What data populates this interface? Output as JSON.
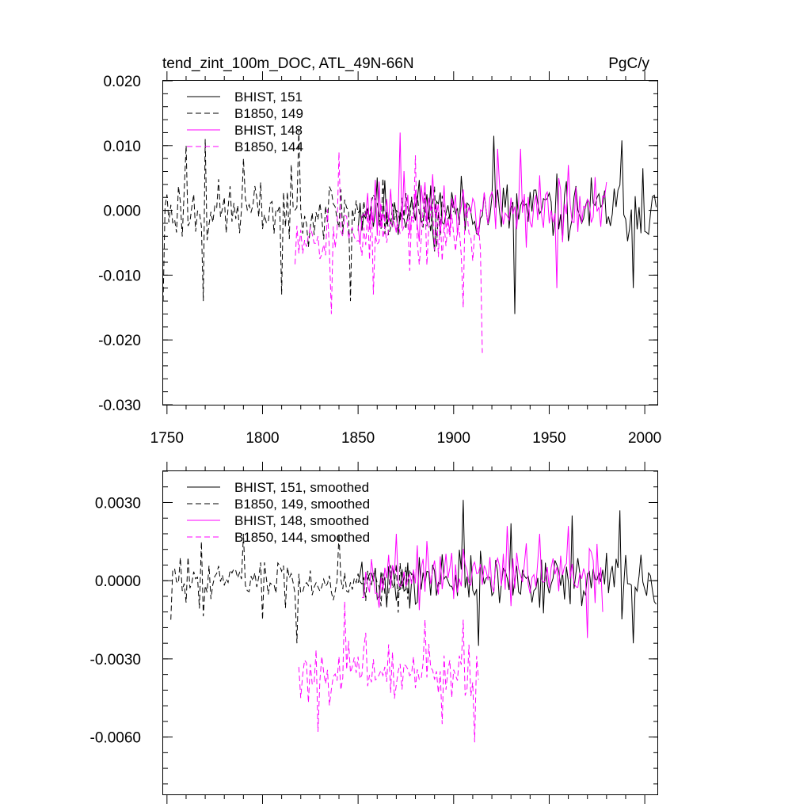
{
  "chart_data": [
    {
      "type": "line",
      "title_left": "tend_zint_100m_DOC, ATL_49N-66N",
      "title_right": "PgC/y",
      "xlim": [
        1748,
        2007
      ],
      "ylim": [
        -0.03,
        0.02
      ],
      "xticks": [
        1750,
        1800,
        1850,
        1900,
        1950,
        2000
      ],
      "xtick_labels": [
        "1750",
        "1800",
        "1850",
        "1900",
        "1950",
        "2000"
      ],
      "yticks": [
        0.02,
        0.01,
        0.0,
        -0.01,
        -0.02,
        -0.03
      ],
      "ytick_labels": [
        "0.020",
        "0.010",
        "0.000",
        "-0.010",
        "-0.020",
        "-0.030"
      ],
      "legend": [
        {
          "label": "BHIST, 151",
          "color": "#000000",
          "dash": "solid"
        },
        {
          "label": "B1850, 149",
          "color": "#000000",
          "dash": "dashed"
        },
        {
          "label": "BHIST, 148",
          "color": "#ff00ff",
          "dash": "solid"
        },
        {
          "label": "B1850, 144",
          "color": "#ff00ff",
          "dash": "dashed"
        }
      ],
      "series": [
        {
          "name": "BHIST, 151",
          "color": "#000000",
          "dash": "solid",
          "x_start": 1850,
          "x_end": 2006,
          "mean": 0.0,
          "amp": 0.0065,
          "seed": 11,
          "extremes": [
            [
              1921,
              0.0115
            ],
            [
              1932,
              -0.016
            ],
            [
              1988,
              0.0108
            ],
            [
              1994,
              -0.012
            ],
            [
              1999,
              0.0065
            ],
            [
              2006,
              0.0005
            ]
          ]
        },
        {
          "name": "B1850, 149",
          "color": "#000000",
          "dash": "dashed",
          "x_start": 1748,
          "x_end": 1900,
          "mean": 0.0,
          "amp": 0.006,
          "seed": 23,
          "extremes": [
            [
              1748,
              -0.014
            ],
            [
              1760,
              0.01
            ],
            [
              1769,
              -0.014
            ],
            [
              1770,
              0.011
            ],
            [
              1790,
              0.008
            ],
            [
              1810,
              -0.013
            ],
            [
              1819,
              0.0125
            ],
            [
              1846,
              -0.014
            ]
          ]
        },
        {
          "name": "BHIST, 148",
          "color": "#ff00ff",
          "dash": "solid",
          "x_start": 1850,
          "x_end": 1980,
          "mean": 0.0,
          "amp": 0.0065,
          "seed": 37,
          "extremes": [
            [
              1872,
              0.012
            ],
            [
              1923,
              0.0095
            ],
            [
              1935,
              0.0095
            ],
            [
              1954,
              -0.012
            ],
            [
              1960,
              0.007
            ]
          ]
        },
        {
          "name": "B1850, 144",
          "color": "#ff00ff",
          "dash": "dashed",
          "x_start": 1817,
          "x_end": 1915,
          "mean": -0.0035,
          "amp": 0.006,
          "seed": 53,
          "extremes": [
            [
              1836,
              -0.016
            ],
            [
              1840,
              0.009
            ],
            [
              1858,
              -0.013
            ],
            [
              1880,
              0.0085
            ],
            [
              1905,
              -0.015
            ],
            [
              1915,
              -0.022
            ]
          ]
        }
      ]
    },
    {
      "type": "line",
      "xlim": [
        1748,
        2007
      ],
      "ylim": [
        -0.0082,
        0.0042
      ],
      "xticks": [
        1750,
        1800,
        1850,
        1900,
        1950,
        2000
      ],
      "yticks": [
        0.003,
        0.0,
        -0.003,
        -0.006
      ],
      "ytick_labels": [
        "0.0030",
        "0.0000",
        "-0.0030",
        "-0.0060"
      ],
      "legend": [
        {
          "label": "BHIST, 151, smoothed",
          "color": "#000000",
          "dash": "solid"
        },
        {
          "label": "B1850, 149, smoothed",
          "color": "#000000",
          "dash": "dashed"
        },
        {
          "label": "BHIST, 148, smoothed",
          "color": "#ff00ff",
          "dash": "solid"
        },
        {
          "label": "B1850, 144, smoothed",
          "color": "#ff00ff",
          "dash": "dashed"
        }
      ],
      "series": [
        {
          "name": "BHIST, 151, smoothed",
          "color": "#000000",
          "dash": "solid",
          "x_start": 1850,
          "x_end": 2006,
          "mean": 0.0,
          "amp": 0.0013,
          "seed": 71,
          "extremes": [
            [
              1905,
              0.0031
            ],
            [
              1913,
              -0.0025
            ],
            [
              1930,
              0.0022
            ],
            [
              1962,
              0.0025
            ],
            [
              1987,
              0.0027
            ],
            [
              1994,
              -0.0024
            ],
            [
              2006,
              -0.0009
            ]
          ]
        },
        {
          "name": "B1850, 149, smoothed",
          "color": "#000000",
          "dash": "dashed",
          "x_start": 1752,
          "x_end": 1880,
          "mean": 0.0,
          "amp": 0.0011,
          "seed": 83,
          "extremes": [
            [
              1752,
              -0.0015
            ],
            [
              1768,
              0.0015
            ],
            [
              1790,
              0.0018
            ],
            [
              1800,
              -0.0015
            ],
            [
              1818,
              -0.0024
            ],
            [
              1840,
              0.0018
            ]
          ]
        },
        {
          "name": "BHIST, 148, smoothed",
          "color": "#ff00ff",
          "dash": "solid",
          "x_start": 1852,
          "x_end": 1978,
          "mean": 0.0002,
          "amp": 0.0012,
          "seed": 97,
          "extremes": [
            [
              1870,
              0.0018
            ],
            [
              1928,
              0.0021
            ],
            [
              1945,
              0.0018
            ],
            [
              1960,
              0.0021
            ],
            [
              1970,
              -0.0022
            ],
            [
              1978,
              -0.0012
            ]
          ]
        },
        {
          "name": "B1850, 144, smoothed",
          "color": "#ff00ff",
          "dash": "dashed",
          "x_start": 1819,
          "x_end": 1913,
          "mean": -0.0035,
          "amp": 0.0013,
          "seed": 101,
          "extremes": [
            [
              1820,
              -0.0045
            ],
            [
              1829,
              -0.0058
            ],
            [
              1843,
              -0.0008
            ],
            [
              1854,
              -0.002
            ],
            [
              1867,
              -0.0043
            ],
            [
              1885,
              -0.0015
            ],
            [
              1894,
              -0.0055
            ],
            [
              1905,
              -0.0015
            ],
            [
              1911,
              -0.0062
            ],
            [
              1913,
              -0.0038
            ]
          ]
        }
      ]
    }
  ]
}
